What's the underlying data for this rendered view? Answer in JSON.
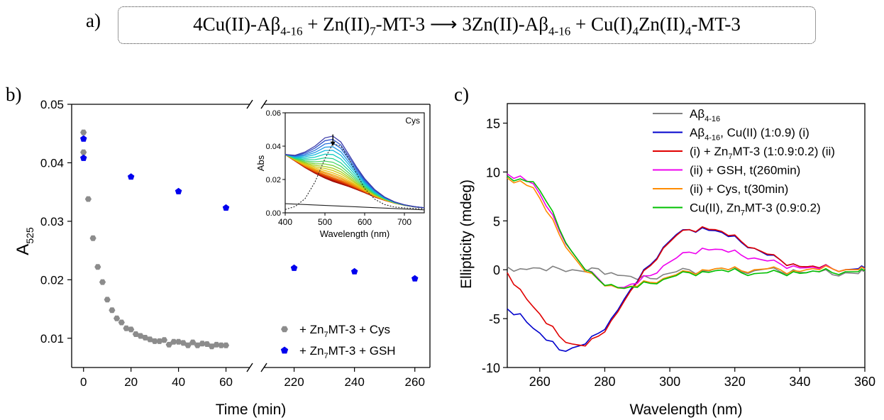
{
  "panels": {
    "a": "a)",
    "b": "b)",
    "c": "c)"
  },
  "equation": {
    "parts": [
      "4Cu(II)-Aβ",
      "4-16",
      " + Zn(II)",
      "7",
      "-MT-3 ⟶ 3Zn(II)-Aβ",
      "4-16",
      " + Cu(I)",
      "4",
      "Zn(II)",
      "4",
      "-MT-3"
    ]
  },
  "chart_data": [
    {
      "id": "b-main",
      "type": "scatter",
      "xlabel": "Time (min)",
      "ylabel": "A",
      "ylabel_sub": "525",
      "broken_x_axis": true,
      "x_segments": [
        [
          -5,
          70
        ],
        [
          210,
          265
        ]
      ],
      "ylim": [
        0.005,
        0.05
      ],
      "xticks": [
        0,
        20,
        40,
        60,
        220,
        240,
        260
      ],
      "yticks": [
        0.01,
        0.02,
        0.03,
        0.04,
        0.05
      ],
      "ytick_labels": [
        "0.01",
        "0.02",
        "0.03",
        "0.04",
        "0.05"
      ],
      "legend": {
        "position": "bottom-right",
        "entries": [
          {
            "prefix": "+ Zn",
            "sub": "7",
            "suffix": "MT-3 + Cys"
          },
          {
            "prefix": "+ Zn",
            "sub": "7",
            "suffix": "MT-3 + GSH"
          }
        ]
      },
      "series": [
        {
          "color": "#8c8c8c",
          "marker": "hexagon",
          "x": [
            0,
            0,
            2,
            4,
            6,
            8,
            10,
            12,
            14,
            16,
            18,
            20,
            22,
            24,
            26,
            28,
            30,
            32,
            34,
            36,
            38,
            40,
            42,
            44,
            46,
            48,
            50,
            52,
            54,
            56,
            58,
            60
          ],
          "y": [
            0.0452,
            0.0418,
            0.0338,
            0.0271,
            0.0222,
            0.0196,
            0.0166,
            0.0148,
            0.0134,
            0.0127,
            0.0117,
            0.0115,
            0.0107,
            0.0104,
            0.0101,
            0.0098,
            0.0095,
            0.0095,
            0.0097,
            0.0089,
            0.0094,
            0.0094,
            0.0092,
            0.0088,
            0.0093,
            0.0088,
            0.0091,
            0.009,
            0.0086,
            0.0089,
            0.0088,
            0.0088
          ]
        },
        {
          "color": "#0000ee",
          "marker": "pentagon",
          "x": [
            0,
            0,
            20,
            40,
            60,
            220,
            240,
            260
          ],
          "y": [
            0.0441,
            0.0408,
            0.0376,
            0.0351,
            0.0323,
            0.022,
            0.0214,
            0.0202
          ]
        }
      ]
    },
    {
      "id": "b-inset",
      "type": "line",
      "title": "Cys",
      "xlabel": "Wavelength (nm)",
      "ylabel": "Abs",
      "xlim": [
        400,
        750
      ],
      "ylim": [
        0,
        0.06
      ],
      "xticks": [
        400,
        500,
        600,
        700
      ],
      "yticks": [
        0,
        0.02,
        0.04,
        0.06
      ],
      "ytick_labels": [
        "0.00",
        "0.02",
        "0.04",
        "0.06"
      ],
      "family": {
        "count": 22,
        "colors": [
          "#3a3aa8",
          "#2f52c8",
          "#2a74dc",
          "#1f98e4",
          "#12b8dc",
          "#10ccc0",
          "#22d496",
          "#4ad467",
          "#78d23a",
          "#a6cf1f",
          "#cccb14",
          "#e6c012",
          "#f0a80f",
          "#f08e0c",
          "#ec7208",
          "#e45606",
          "#d83a05",
          "#c82404",
          "#b81404",
          "#a40c04",
          "#940804",
          "#8a0606"
        ],
        "x": [
          400,
          425,
          450,
          475,
          500,
          520,
          540,
          560,
          580,
          600,
          625,
          650,
          675,
          700,
          725,
          750
        ],
        "peak_scale": [
          1.0,
          0.93,
          0.85,
          0.77,
          0.69,
          0.6,
          0.51,
          0.43,
          0.36,
          0.3,
          0.25,
          0.2,
          0.16,
          0.13,
          0.1,
          0.08,
          0.065,
          0.05,
          0.035,
          0.025,
          0.02,
          0.015
        ],
        "baseline": [
          0.035,
          0.031,
          0.027,
          0.0235,
          0.0205,
          0.0185,
          0.017,
          0.0155,
          0.0138,
          0.012,
          0.0095,
          0.0075,
          0.0058,
          0.0045,
          0.0036,
          0.003
        ],
        "peak": [
          0.0,
          0.0035,
          0.0095,
          0.0165,
          0.0245,
          0.0275,
          0.0255,
          0.0195,
          0.0135,
          0.0085,
          0.0045,
          0.002,
          0.0008,
          0.0003,
          0.0001,
          0.0
        ]
      },
      "difference_curve": {
        "x": [
          400,
          425,
          450,
          475,
          500,
          520,
          540,
          560,
          580,
          600,
          625,
          650,
          675,
          700,
          725,
          750
        ],
        "y": [
          0.002,
          0.0038,
          0.0085,
          0.0185,
          0.0325,
          0.0415,
          0.04,
          0.0325,
          0.0235,
          0.0145,
          0.0082,
          0.005,
          0.0035,
          0.003,
          0.0026,
          0.0024
        ]
      },
      "baseline_curve": {
        "x": [
          400,
          750
        ],
        "y": [
          0.0055,
          0.0018
        ]
      },
      "arrow": {
        "x": 520,
        "y_from": 0.047,
        "y_to": 0.041
      }
    },
    {
      "id": "c",
      "type": "line",
      "xlabel": "Wavelength (nm)",
      "ylabel": "Ellipticity (mdeg)",
      "xlim": [
        250,
        360
      ],
      "ylim": [
        -10,
        17
      ],
      "xticks": [
        260,
        280,
        300,
        320,
        340,
        360
      ],
      "yticks": [
        -10,
        -5,
        0,
        5,
        10,
        15
      ],
      "legend": {
        "position": "top-right",
        "entries": [
          {
            "color": "#808080",
            "prefix": "Aβ",
            "sub": "4-16",
            "suffix": ""
          },
          {
            "color": "#0000cc",
            "prefix": "Aβ",
            "sub": "4-16",
            "suffix": ", Cu(II) (1:0.9) (i)"
          },
          {
            "color": "#e00000",
            "prefix": "(i) + Zn",
            "sub": "7",
            "suffix": "MT-3 (1:0.9:0.2) (ii)"
          },
          {
            "color": "#ee00ee",
            "prefix": "(ii) + GSH, t(260min)",
            "sub": "",
            "suffix": ""
          },
          {
            "color": "#ff8c00",
            "prefix": "(ii) + Cys, t(30min)",
            "sub": "",
            "suffix": ""
          },
          {
            "color": "#00c000",
            "prefix": "Cu(II), Zn",
            "sub": "7",
            "suffix": "MT-3 (0.9:0.2)"
          }
        ]
      },
      "series": [
        {
          "color": "#808080",
          "x": [
            250,
            254,
            258,
            262,
            266,
            270,
            274,
            278,
            282,
            286,
            290,
            294,
            298,
            302,
            306,
            310,
            314,
            318,
            322,
            326,
            330,
            334,
            338,
            342,
            346,
            350,
            354,
            358,
            360
          ],
          "y": [
            0.3,
            0.1,
            0.2,
            -0.1,
            0.1,
            0.0,
            -0.2,
            0.1,
            -0.3,
            -0.6,
            -1.0,
            -0.9,
            -0.5,
            -0.2,
            0.0,
            -0.1,
            0.1,
            0.0,
            -0.2,
            -0.1,
            0.1,
            -0.2,
            0.0,
            -0.3,
            -0.2,
            -0.5,
            -0.3,
            -0.4,
            -0.2
          ]
        },
        {
          "color": "#0000cc",
          "x": [
            250,
            254,
            258,
            262,
            266,
            270,
            274,
            278,
            282,
            286,
            290,
            294,
            298,
            302,
            306,
            310,
            314,
            318,
            322,
            326,
            330,
            334,
            338,
            342,
            346,
            350,
            354,
            358,
            360
          ],
          "y": [
            -4.0,
            -4.5,
            -6.0,
            -7.2,
            -8.2,
            -8.0,
            -7.6,
            -6.5,
            -5.0,
            -3.0,
            -1.2,
            0.5,
            2.3,
            3.6,
            4.1,
            4.3,
            4.0,
            3.4,
            2.8,
            2.2,
            1.5,
            1.0,
            0.6,
            0.3,
            0.2,
            0.1,
            0.0,
            0.1,
            0.2
          ]
        },
        {
          "color": "#e00000",
          "x": [
            250,
            254,
            258,
            262,
            266,
            270,
            274,
            278,
            282,
            286,
            290,
            294,
            298,
            302,
            306,
            310,
            314,
            318,
            322,
            326,
            330,
            334,
            338,
            342,
            346,
            350,
            354,
            358,
            360
          ],
          "y": [
            -0.3,
            -2.0,
            -3.8,
            -5.5,
            -6.8,
            -7.6,
            -7.8,
            -6.8,
            -5.2,
            -3.2,
            -1.3,
            0.4,
            2.2,
            3.5,
            4.1,
            4.4,
            4.1,
            3.5,
            2.9,
            2.2,
            1.6,
            1.0,
            0.6,
            0.3,
            0.2,
            0.1,
            0.0,
            0.0,
            0.1
          ]
        },
        {
          "color": "#ee00ee",
          "x": [
            250,
            254,
            258,
            262,
            266,
            270,
            274,
            278,
            282,
            286,
            290,
            294,
            298,
            302,
            306,
            310,
            314,
            318,
            322,
            326,
            330,
            334,
            338,
            342,
            346,
            350,
            354,
            358,
            360
          ],
          "y": [
            9.8,
            9.6,
            8.8,
            6.5,
            4.0,
            1.8,
            0.0,
            -0.9,
            -1.6,
            -1.8,
            -1.4,
            -0.6,
            0.4,
            1.2,
            1.8,
            2.2,
            2.1,
            1.8,
            1.5,
            1.2,
            0.9,
            0.6,
            0.4,
            0.2,
            0.1,
            0.1,
            0.0,
            0.0,
            0.1
          ]
        },
        {
          "color": "#ff8c00",
          "x": [
            250,
            254,
            258,
            262,
            266,
            270,
            274,
            278,
            282,
            286,
            290,
            294,
            298,
            302,
            306,
            310,
            314,
            318,
            322,
            326,
            330,
            334,
            338,
            342,
            346,
            350,
            354,
            358,
            360
          ],
          "y": [
            9.4,
            9.1,
            8.4,
            6.0,
            3.6,
            1.5,
            -0.2,
            -1.0,
            -1.6,
            -1.9,
            -1.7,
            -1.3,
            -0.9,
            -0.5,
            -0.2,
            0.0,
            0.1,
            0.0,
            -0.1,
            0.0,
            0.1,
            0.0,
            -0.1,
            0.0,
            0.0,
            0.1,
            0.0,
            0.0,
            0.1
          ]
        },
        {
          "color": "#00c000",
          "x": [
            250,
            254,
            258,
            262,
            266,
            270,
            274,
            278,
            282,
            286,
            290,
            294,
            298,
            302,
            306,
            310,
            314,
            318,
            322,
            326,
            330,
            334,
            338,
            342,
            346,
            350,
            354,
            358,
            360
          ],
          "y": [
            9.6,
            9.3,
            9.0,
            7.0,
            4.2,
            1.8,
            0.0,
            -1.0,
            -1.5,
            -1.9,
            -1.8,
            -1.4,
            -1.0,
            -0.6,
            -0.3,
            -0.2,
            -0.1,
            -0.2,
            -0.3,
            -0.4,
            -0.3,
            -0.3,
            -0.2,
            -0.3,
            -0.2,
            -0.3,
            -0.2,
            -0.2,
            -0.1
          ]
        }
      ]
    }
  ]
}
